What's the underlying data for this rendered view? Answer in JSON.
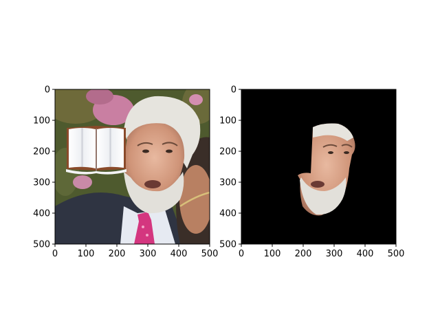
{
  "figure": {
    "panels": [
      {
        "name": "original-with-occluder",
        "content": "photo",
        "x_ticks": [
          "0",
          "100",
          "200",
          "300",
          "400",
          "500"
        ],
        "y_ticks": [
          "0",
          "100",
          "200",
          "300",
          "400",
          "500"
        ],
        "xlim": [
          0,
          500
        ],
        "ylim": [
          500,
          0
        ]
      },
      {
        "name": "segmented-face-mask",
        "content": "mask",
        "x_ticks": [
          "0",
          "100",
          "200",
          "300",
          "400",
          "500"
        ],
        "y_ticks": [
          "0",
          "100",
          "200",
          "300",
          "400",
          "500"
        ],
        "xlim": [
          0,
          500
        ],
        "ylim": [
          500,
          0
        ]
      }
    ],
    "colors": {
      "mask_background": "#000000",
      "skin": "#d9a38a",
      "hair": "#e6e4de",
      "suit": "#2f3442",
      "tie": "#d4367f",
      "foliage": "#4e5a2e",
      "book_cover": "#8a4a2a"
    },
    "icons": [
      "open-book-icon"
    ]
  }
}
